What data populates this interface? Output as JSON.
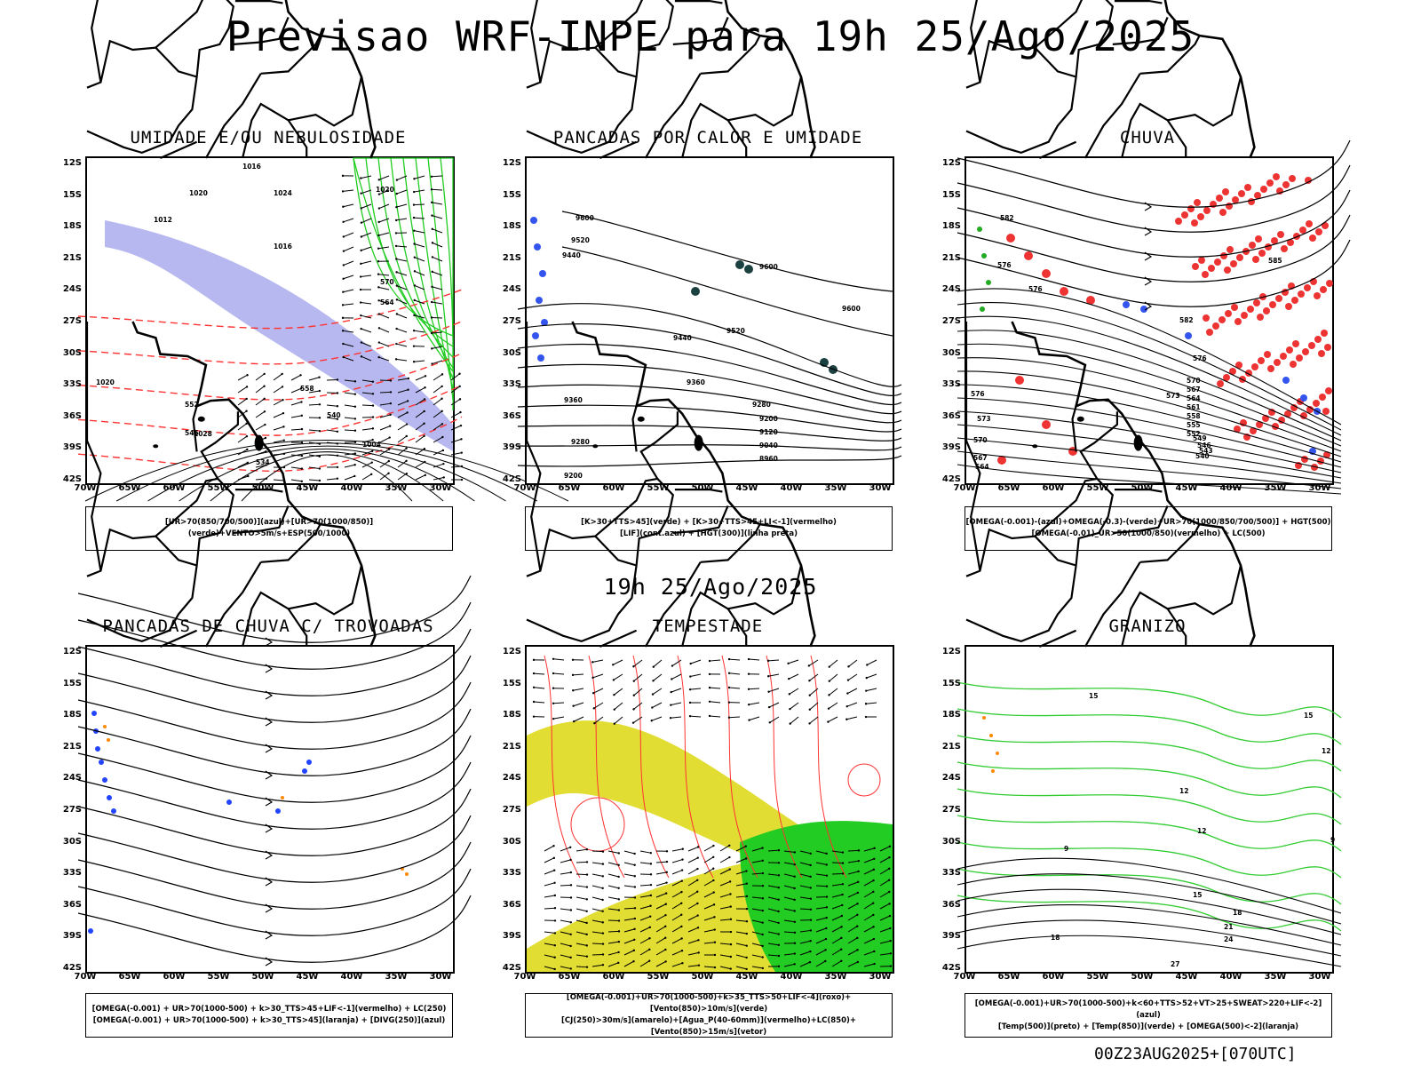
{
  "title": "Previsao WRF-INPE  para 19h 25/Ago/2025",
  "subtitle": "19h 25/Ago/2025",
  "footer": "00Z23AUG2025+[070UTC]",
  "axes": {
    "lat_labels": [
      "12S",
      "15S",
      "18S",
      "21S",
      "24S",
      "27S",
      "30S",
      "33S",
      "36S",
      "39S",
      "42S"
    ],
    "lon_labels": [
      "70W",
      "65W",
      "60W",
      "55W",
      "50W",
      "45W",
      "40W",
      "35W",
      "30W"
    ]
  },
  "panels": [
    {
      "title": "UMIDADE E/OU NEBULOSIDADE",
      "legend": [
        "[UR>70(850/700/500)](azul)+[UR>70(1000/850)](verde)+VENTO>5m/s+ESP(500/1000)"
      ],
      "contour_labels": [
        "1016",
        "1020",
        "1024",
        "1012",
        "1016",
        "1020",
        "570",
        "564",
        "558",
        "552",
        "546",
        "540",
        "534",
        "1028",
        "1004",
        "1020"
      ]
    },
    {
      "title": "PANCADAS POR CALOR E UMIDADE",
      "legend": [
        "[K>30+TTS>45](verde) + [K>30+TTS>45+LI<-1](vermelho)",
        "[LIF](cont.azul) + [HGT(300)](linha preta)"
      ],
      "contour_labels": [
        "9600",
        "9520",
        "9440",
        "9600",
        "9520",
        "9440",
        "9360",
        "9360",
        "9280",
        "9200",
        "9120",
        "9040",
        "8960",
        "9280",
        "9200",
        "9600"
      ]
    },
    {
      "title": "CHUVA",
      "legend": [
        "[OMEGA(-0.001)-(azul)+OMEGA(-0.3)-(verde)+UR>70(1000/850/700/500)] + HGT(500)",
        "[OMEGA(-0.01)_UR>50(1000/850)(vermelho) + LC(500)"
      ],
      "contour_labels": [
        "582",
        "576",
        "576",
        "585",
        "582",
        "576",
        "573",
        "570",
        "567",
        "564",
        "561",
        "558",
        "555",
        "552",
        "549",
        "546",
        "543",
        "540",
        "576",
        "573",
        "570",
        "567",
        "564"
      ]
    },
    {
      "title": "PANCADAS DE CHUVA C/ TROVOADAS",
      "legend": [
        "[OMEGA(-0.001) + UR>70(1000-500) + k>30_TTS>45+LIF<-1](vermelho) + LC(250)",
        "[OMEGA(-0.001) + UR>70(1000-500) + k>30_TTS>45](laranja) + [DIVG(250)](azul)"
      ],
      "contour_labels": []
    },
    {
      "title": "TEMPESTADE",
      "legend": [
        "[OMEGA(-0.001)+UR>70(1000-500)+k>35_TTS>50+LIF<-4](roxo)+[Vento(850)>10m/s](verde)",
        "[CJ(250)>30m/s](amarelo)+[Agua_P(40-60mm)](vermelho)+LC(850)+[Vento(850)>15m/s](vetor)"
      ],
      "contour_labels": []
    },
    {
      "title": "GRANIZO",
      "legend": [
        "[OMEGA(-0.001)+UR>70(1000-500)+k<60+TTS>52+VT>25+SWEAT>220+LIF<-2](azul)",
        "[Temp(500)](preto) + [Temp(850)](verde) + [OMEGA(500)<-2](laranja)"
      ],
      "contour_labels": [
        "15",
        "12",
        "9",
        "12",
        "15",
        "18",
        "21",
        "24",
        "27",
        "18",
        "15",
        "12",
        "9"
      ]
    }
  ]
}
